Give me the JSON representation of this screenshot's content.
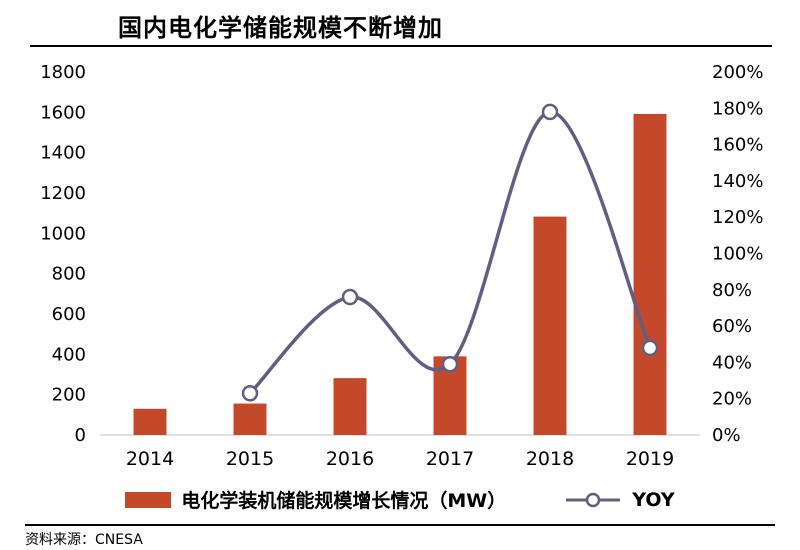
{
  "title": "国内电化学储能规模不断增加",
  "source": "资料来源：CNESA",
  "legend": {
    "bar_label": "电化学装机储能规模增长情况（MW）",
    "line_label": "YOY"
  },
  "colors": {
    "bar": "#C4492B",
    "line": "#605E82",
    "marker_fill": "#FFFFFF",
    "axis_line": "#BFBFBF",
    "text": "#000000"
  },
  "chart_data": {
    "type": "bar+line",
    "title": "国内电化学储能规模不断增加",
    "categories": [
      "2014",
      "2015",
      "2016",
      "2017",
      "2018",
      "2019"
    ],
    "series": [
      {
        "name": "电化学装机储能规模增长情况（MW）",
        "type": "bar",
        "axis": "left",
        "color": "#C4492B",
        "values": [
          130,
          156,
          282,
          390,
          1083,
          1592
        ]
      },
      {
        "name": "YOY",
        "type": "line",
        "axis": "right",
        "color": "#605E82",
        "values": [
          null,
          23,
          76,
          39,
          178,
          48
        ],
        "unit": "%"
      }
    ],
    "left_axis": {
      "min": 0,
      "max": 1800,
      "step": 200,
      "ticks": [
        "0",
        "200",
        "400",
        "600",
        "800",
        "1000",
        "1200",
        "1400",
        "1600",
        "1800"
      ]
    },
    "right_axis": {
      "min": 0,
      "max": 200,
      "step": 20,
      "suffix": "%",
      "ticks": [
        "0%",
        "20%",
        "40%",
        "60%",
        "80%",
        "100%",
        "120%",
        "140%",
        "160%",
        "180%",
        "200%"
      ]
    },
    "grid": false,
    "legend_position": "bottom",
    "source": "资料来源：CNESA"
  }
}
